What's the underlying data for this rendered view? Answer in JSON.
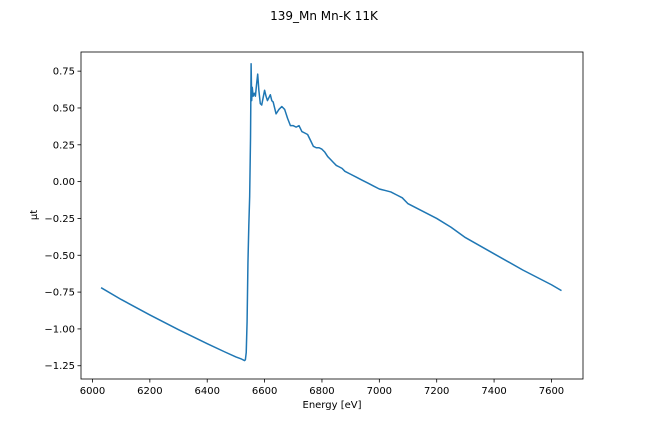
{
  "chart_data": {
    "type": "line",
    "title": "139_Mn Mn-K 11K",
    "xlabel": "Energy [eV]",
    "ylabel": "μt",
    "xlim": [
      5960,
      7710
    ],
    "ylim": [
      -1.34,
      0.88
    ],
    "x_ticks": [
      6000,
      6200,
      6400,
      6600,
      6800,
      7000,
      7200,
      7400,
      7600
    ],
    "y_ticks": [
      -1.25,
      -1.0,
      -0.75,
      -0.5,
      -0.25,
      0.0,
      0.25,
      0.5,
      0.75
    ],
    "x_tick_labels": [
      "6000",
      "6200",
      "6400",
      "6600",
      "6800",
      "7000",
      "7200",
      "7400",
      "7600"
    ],
    "y_tick_labels": [
      "−1.25",
      "−1.00",
      "−0.75",
      "−0.50",
      "−0.25",
      "0.00",
      "0.25",
      "0.50",
      "0.75"
    ],
    "grid": false,
    "legend": false,
    "series": [
      {
        "color": "#1f77b4",
        "x": [
          6030,
          6100,
          6200,
          6300,
          6400,
          6460,
          6500,
          6520,
          6530,
          6533,
          6536,
          6539,
          6542,
          6545,
          6548,
          6551,
          6553,
          6555,
          6557,
          6560,
          6564,
          6568,
          6572,
          6576,
          6580,
          6585,
          6590,
          6595,
          6600,
          6605,
          6610,
          6615,
          6620,
          6625,
          6630,
          6640,
          6650,
          6660,
          6670,
          6680,
          6690,
          6700,
          6710,
          6720,
          6730,
          6740,
          6750,
          6760,
          6770,
          6780,
          6790,
          6800,
          6810,
          6820,
          6830,
          6840,
          6850,
          6860,
          6870,
          6880,
          6900,
          6920,
          6940,
          6960,
          6980,
          7000,
          7020,
          7040,
          7060,
          7080,
          7100,
          7150,
          7200,
          7250,
          7300,
          7400,
          7500,
          7600,
          7635
        ],
        "y": [
          -0.72,
          -0.8,
          -0.905,
          -1.005,
          -1.1,
          -1.155,
          -1.19,
          -1.205,
          -1.215,
          -1.21,
          -1.16,
          -0.95,
          -0.55,
          -0.3,
          -0.1,
          0.3,
          0.8,
          0.55,
          0.64,
          0.58,
          0.6,
          0.58,
          0.66,
          0.73,
          0.62,
          0.53,
          0.52,
          0.57,
          0.62,
          0.58,
          0.55,
          0.57,
          0.59,
          0.55,
          0.54,
          0.46,
          0.49,
          0.51,
          0.49,
          0.43,
          0.38,
          0.38,
          0.37,
          0.38,
          0.34,
          0.33,
          0.32,
          0.28,
          0.24,
          0.23,
          0.23,
          0.22,
          0.2,
          0.17,
          0.15,
          0.13,
          0.11,
          0.1,
          0.09,
          0.07,
          0.05,
          0.03,
          0.01,
          -0.01,
          -0.03,
          -0.05,
          -0.06,
          -0.07,
          -0.09,
          -0.11,
          -0.15,
          -0.2,
          -0.25,
          -0.31,
          -0.38,
          -0.49,
          -0.6,
          -0.7,
          -0.74
        ]
      }
    ]
  }
}
